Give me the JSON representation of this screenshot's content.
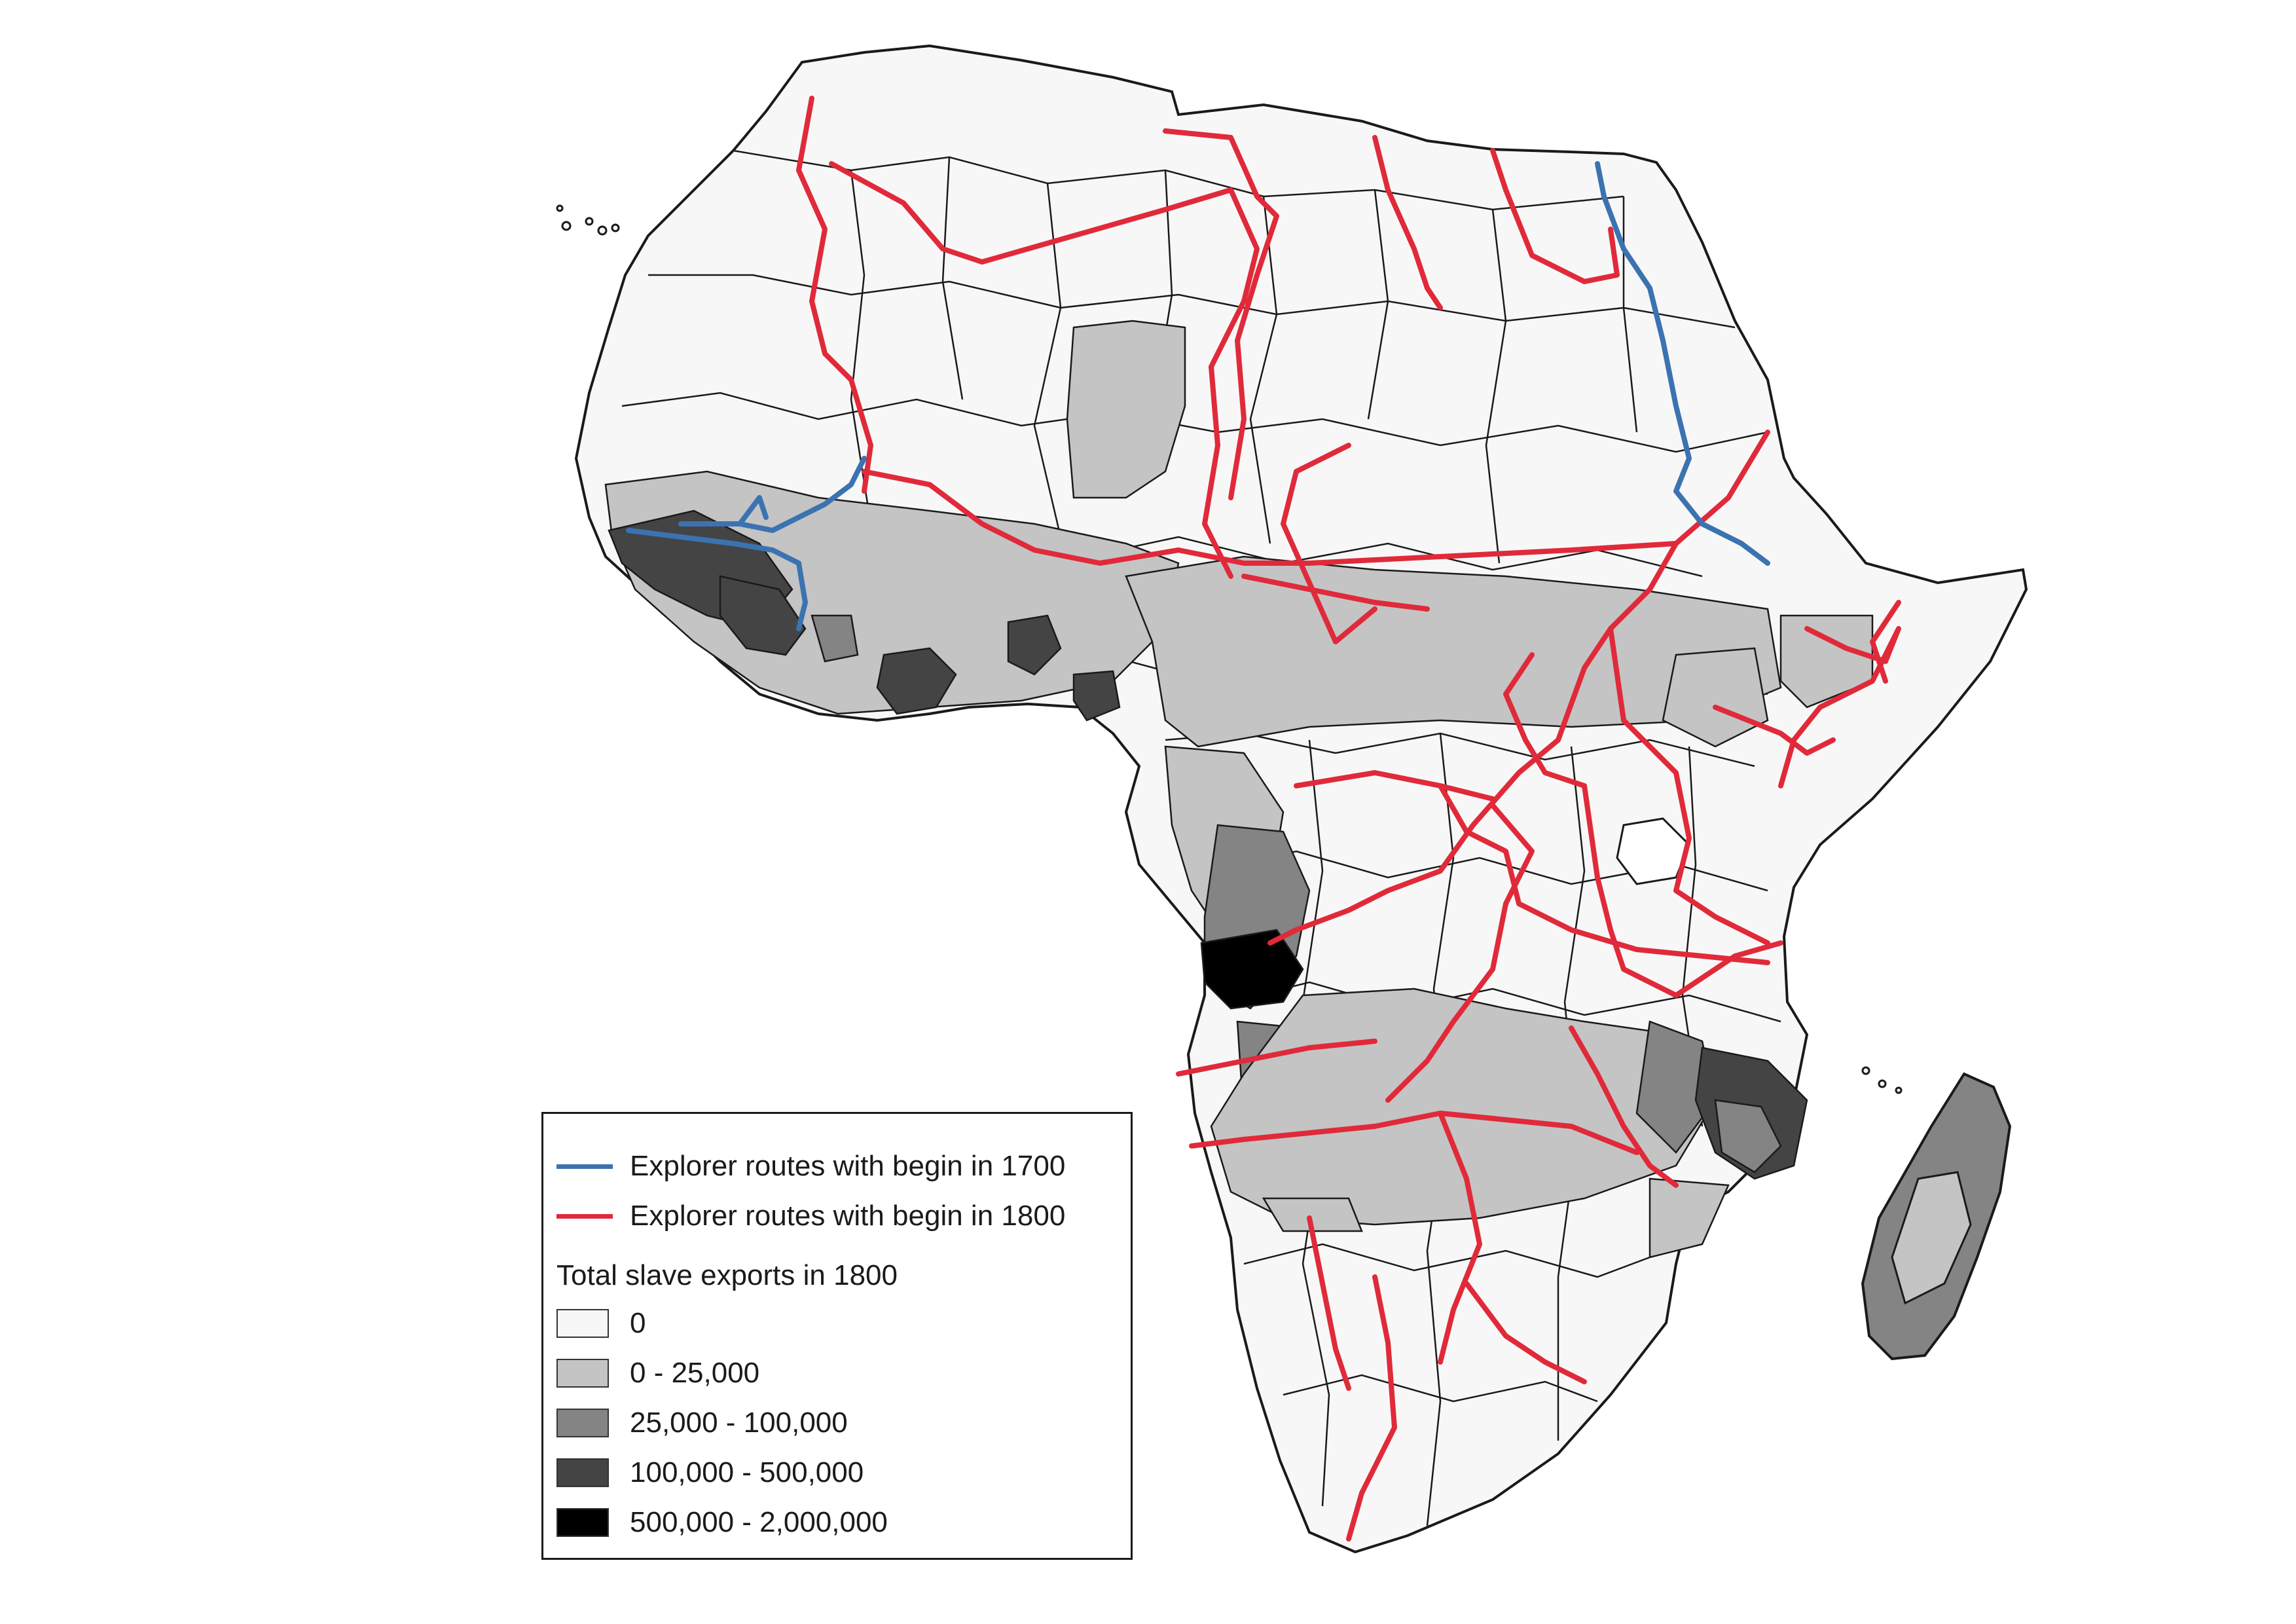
{
  "legend": {
    "routes": [
      {
        "label": "Explorer routes with begin in 1700",
        "color": "#3b73b0"
      },
      {
        "label": "Explorer routes with begin in 1800",
        "color": "#e02a3a"
      }
    ],
    "title": "Total slave exports in 1800",
    "classes": [
      {
        "label": "0",
        "color": "#f7f7f7"
      },
      {
        "label": "0 - 25,000",
        "color": "#c4c4c4"
      },
      {
        "label": "25,000 - 100,000",
        "color": "#848484"
      },
      {
        "label": "100,000 - 500,000",
        "color": "#444444"
      },
      {
        "label": "500,000 - 2,000,000",
        "color": "#000000"
      }
    ]
  },
  "colors": {
    "border": "#1a1a1a",
    "route_1700": "#3b73b0",
    "route_1800": "#e02a3a"
  }
}
